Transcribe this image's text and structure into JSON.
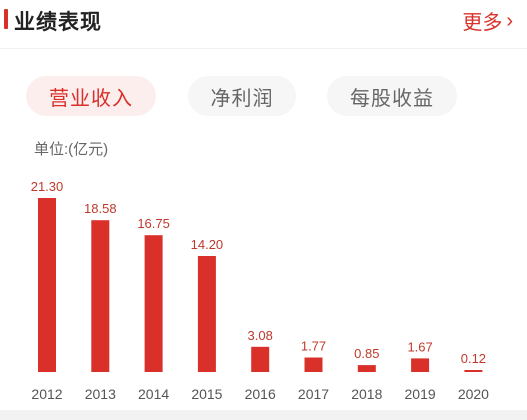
{
  "header": {
    "title": "业绩表现",
    "more_label": "更多",
    "more_icon": "chevron-right-icon",
    "accent_color": "#d9302a"
  },
  "tabs": [
    {
      "label": "营业收入",
      "active": true
    },
    {
      "label": "净利润",
      "active": false
    },
    {
      "label": "每股收益",
      "active": false
    }
  ],
  "unit_label": "单位:(亿元)",
  "chart_data": {
    "type": "bar",
    "categories": [
      "2012",
      "2013",
      "2014",
      "2015",
      "2016",
      "2017",
      "2018",
      "2019",
      "2020"
    ],
    "values": [
      21.3,
      18.58,
      16.75,
      14.2,
      3.08,
      1.77,
      0.85,
      1.67,
      0.12
    ],
    "value_labels": [
      "21.30",
      "18.58",
      "16.75",
      "14.20",
      "3.08",
      "1.77",
      "0.85",
      "1.67",
      "0.12"
    ],
    "title": "",
    "xlabel": "",
    "ylabel": "单位:(亿元)",
    "ylim": [
      0,
      21.3
    ],
    "grid": false,
    "bar_color": "#d9302a",
    "label_color": "#c0392b"
  }
}
